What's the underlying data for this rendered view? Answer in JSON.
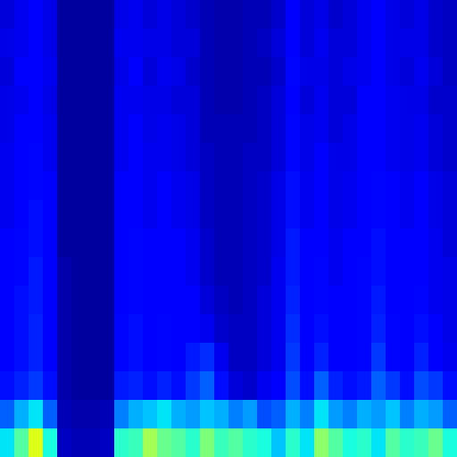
{
  "chart_data": {
    "type": "heatmap",
    "tick_labels": false,
    "color_range": [
      0,
      1
    ],
    "cells": [
      [
        0.08,
        0.1,
        0.11,
        0.09,
        0.03,
        0.03,
        0.03,
        0.03,
        0.09,
        0.1,
        0.08,
        0.09,
        0.08,
        0.07,
        0.05,
        0.04,
        0.04,
        0.05,
        0.05,
        0.07,
        0.12,
        0.08,
        0.09,
        0.07,
        0.08,
        0.1,
        0.11,
        0.09,
        0.08,
        0.09,
        0.07,
        0.06
      ],
      [
        0.09,
        0.1,
        0.12,
        0.09,
        0.03,
        0.03,
        0.03,
        0.03,
        0.1,
        0.1,
        0.09,
        0.09,
        0.08,
        0.08,
        0.05,
        0.04,
        0.04,
        0.05,
        0.06,
        0.08,
        0.12,
        0.08,
        0.1,
        0.08,
        0.08,
        0.1,
        0.11,
        0.09,
        0.09,
        0.09,
        0.07,
        0.06
      ],
      [
        0.08,
        0.11,
        0.11,
        0.1,
        0.03,
        0.03,
        0.03,
        0.03,
        0.09,
        0.11,
        0.08,
        0.1,
        0.09,
        0.07,
        0.05,
        0.04,
        0.04,
        0.05,
        0.05,
        0.07,
        0.13,
        0.09,
        0.09,
        0.08,
        0.09,
        0.1,
        0.12,
        0.09,
        0.08,
        0.1,
        0.08,
        0.06
      ],
      [
        0.09,
        0.1,
        0.12,
        0.09,
        0.03,
        0.03,
        0.03,
        0.03,
        0.1,
        0.1,
        0.09,
        0.09,
        0.08,
        0.08,
        0.05,
        0.04,
        0.04,
        0.05,
        0.06,
        0.08,
        0.12,
        0.08,
        0.1,
        0.08,
        0.08,
        0.11,
        0.11,
        0.1,
        0.09,
        0.09,
        0.07,
        0.07
      ],
      [
        0.09,
        0.11,
        0.12,
        0.1,
        0.03,
        0.03,
        0.03,
        0.03,
        0.1,
        0.11,
        0.09,
        0.1,
        0.09,
        0.08,
        0.05,
        0.05,
        0.05,
        0.05,
        0.06,
        0.08,
        0.13,
        0.09,
        0.1,
        0.08,
        0.09,
        0.11,
        0.12,
        0.1,
        0.09,
        0.1,
        0.08,
        0.07
      ],
      [
        0.1,
        0.11,
        0.13,
        0.1,
        0.03,
        0.03,
        0.03,
        0.03,
        0.1,
        0.11,
        0.1,
        0.1,
        0.09,
        0.08,
        0.06,
        0.05,
        0.05,
        0.06,
        0.06,
        0.08,
        0.13,
        0.09,
        0.11,
        0.09,
        0.09,
        0.11,
        0.12,
        0.1,
        0.09,
        0.1,
        0.08,
        0.07
      ],
      [
        0.1,
        0.12,
        0.13,
        0.11,
        0.03,
        0.03,
        0.03,
        0.03,
        0.11,
        0.12,
        0.1,
        0.11,
        0.1,
        0.09,
        0.06,
        0.05,
        0.05,
        0.06,
        0.07,
        0.09,
        0.14,
        0.1,
        0.11,
        0.09,
        0.1,
        0.12,
        0.13,
        0.11,
        0.1,
        0.11,
        0.09,
        0.08
      ],
      [
        0.1,
        0.12,
        0.14,
        0.11,
        0.03,
        0.03,
        0.03,
        0.03,
        0.11,
        0.12,
        0.1,
        0.11,
        0.1,
        0.09,
        0.06,
        0.05,
        0.05,
        0.06,
        0.07,
        0.09,
        0.14,
        0.1,
        0.12,
        0.09,
        0.1,
        0.12,
        0.13,
        0.11,
        0.1,
        0.11,
        0.09,
        0.08
      ],
      [
        0.11,
        0.13,
        0.14,
        0.12,
        0.03,
        0.03,
        0.03,
        0.03,
        0.12,
        0.13,
        0.11,
        0.12,
        0.11,
        0.1,
        0.07,
        0.05,
        0.05,
        0.06,
        0.07,
        0.09,
        0.15,
        0.11,
        0.12,
        0.1,
        0.11,
        0.12,
        0.14,
        0.12,
        0.11,
        0.12,
        0.1,
        0.08
      ],
      [
        0.11,
        0.13,
        0.15,
        0.12,
        0.04,
        0.03,
        0.03,
        0.03,
        0.12,
        0.13,
        0.11,
        0.12,
        0.11,
        0.1,
        0.07,
        0.05,
        0.05,
        0.06,
        0.07,
        0.1,
        0.15,
        0.11,
        0.13,
        0.1,
        0.11,
        0.13,
        0.14,
        0.12,
        0.11,
        0.12,
        0.1,
        0.09
      ],
      [
        0.12,
        0.14,
        0.15,
        0.12,
        0.04,
        0.03,
        0.03,
        0.03,
        0.12,
        0.13,
        0.12,
        0.12,
        0.11,
        0.11,
        0.08,
        0.06,
        0.05,
        0.06,
        0.08,
        0.1,
        0.16,
        0.11,
        0.13,
        0.11,
        0.11,
        0.13,
        0.15,
        0.12,
        0.11,
        0.13,
        0.1,
        0.09
      ],
      [
        0.12,
        0.14,
        0.16,
        0.12,
        0.04,
        0.03,
        0.03,
        0.03,
        0.13,
        0.14,
        0.12,
        0.13,
        0.12,
        0.12,
        0.1,
        0.07,
        0.06,
        0.06,
        0.08,
        0.1,
        0.17,
        0.12,
        0.14,
        0.11,
        0.12,
        0.13,
        0.16,
        0.13,
        0.12,
        0.14,
        0.11,
        0.09
      ],
      [
        0.12,
        0.14,
        0.16,
        0.12,
        0.04,
        0.03,
        0.03,
        0.03,
        0.13,
        0.14,
        0.12,
        0.13,
        0.12,
        0.15,
        0.17,
        0.1,
        0.06,
        0.06,
        0.08,
        0.1,
        0.18,
        0.12,
        0.16,
        0.12,
        0.12,
        0.13,
        0.18,
        0.13,
        0.12,
        0.16,
        0.12,
        0.1
      ],
      [
        0.14,
        0.16,
        0.18,
        0.14,
        0.04,
        0.03,
        0.03,
        0.03,
        0.15,
        0.16,
        0.14,
        0.16,
        0.14,
        0.18,
        0.22,
        0.14,
        0.08,
        0.07,
        0.1,
        0.12,
        0.2,
        0.14,
        0.22,
        0.16,
        0.14,
        0.15,
        0.22,
        0.18,
        0.14,
        0.2,
        0.18,
        0.14
      ],
      [
        0.22,
        0.3,
        0.35,
        0.22,
        0.05,
        0.04,
        0.04,
        0.05,
        0.25,
        0.3,
        0.32,
        0.35,
        0.3,
        0.28,
        0.32,
        0.3,
        0.25,
        0.28,
        0.2,
        0.22,
        0.3,
        0.25,
        0.35,
        0.28,
        0.25,
        0.3,
        0.28,
        0.32,
        0.25,
        0.3,
        0.28,
        0.22
      ],
      [
        0.35,
        0.45,
        0.62,
        0.38,
        0.06,
        0.05,
        0.05,
        0.06,
        0.4,
        0.42,
        0.55,
        0.48,
        0.45,
        0.4,
        0.5,
        0.42,
        0.45,
        0.4,
        0.38,
        0.32,
        0.4,
        0.35,
        0.52,
        0.45,
        0.38,
        0.4,
        0.35,
        0.45,
        0.4,
        0.42,
        0.48,
        0.38
      ]
    ]
  }
}
